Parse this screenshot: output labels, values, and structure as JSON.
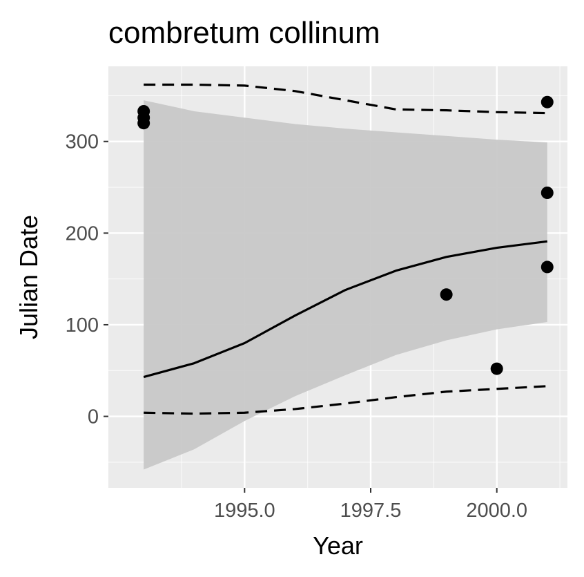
{
  "chart_data": {
    "type": "line",
    "title": "combretum collinum",
    "xlabel": "Year",
    "ylabel": "Julian Date",
    "xlim": [
      1992.3,
      2001.4
    ],
    "ylim": [
      -78,
      382
    ],
    "x_ticks": [
      1995.0,
      1997.5,
      2000.0
    ],
    "x_tick_labels": [
      "1995.0",
      "1997.5",
      "2000.0"
    ],
    "y_ticks": [
      0,
      100,
      200,
      300
    ],
    "y_tick_labels": [
      "0",
      "100",
      "200",
      "300"
    ],
    "grid": true,
    "panel_background": "#ebebeb",
    "grid_color": "#ffffff",
    "ribbon_color": "#c8c8c8",
    "line_color": "#000000",
    "point_color": "#000000",
    "x": [
      1993,
      1994,
      1995,
      1996,
      1997,
      1998,
      1999,
      2000,
      2001
    ],
    "series": [
      {
        "role": "fit",
        "style": "solid",
        "values": [
          43,
          58,
          80,
          110,
          138,
          159,
          174,
          184,
          191
        ]
      },
      {
        "role": "upper-dashed",
        "style": "dashed",
        "values": [
          362,
          362,
          361,
          355,
          345,
          335,
          334,
          332,
          331
        ]
      },
      {
        "role": "lower-dashed",
        "style": "dashed",
        "values": [
          4,
          3,
          4,
          8,
          14,
          21,
          27,
          30,
          33
        ]
      }
    ],
    "ribbon": {
      "x": [
        1993,
        1994,
        1995,
        1996,
        1997,
        1998,
        1999,
        2000,
        2001
      ],
      "upper": [
        345,
        333,
        326,
        319,
        314,
        310,
        306,
        302,
        299
      ],
      "lower": [
        -58,
        -36,
        -5,
        22,
        45,
        67,
        83,
        95,
        103
      ]
    },
    "points": [
      {
        "x": 1993,
        "y": 333
      },
      {
        "x": 1993,
        "y": 326
      },
      {
        "x": 1993,
        "y": 320
      },
      {
        "x": 1999,
        "y": 133
      },
      {
        "x": 2000,
        "y": 52
      },
      {
        "x": 2001,
        "y": 343
      },
      {
        "x": 2001,
        "y": 244
      },
      {
        "x": 2001,
        "y": 163
      }
    ]
  }
}
